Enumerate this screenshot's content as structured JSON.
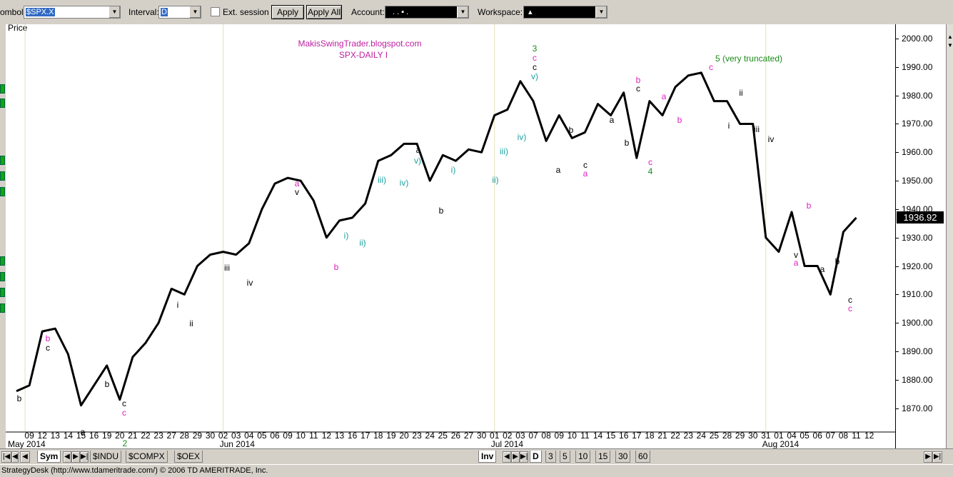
{
  "toolbar": {
    "symbol_label": "ombol:",
    "symbol_value": "$SPX.X",
    "interval_label": "Interval:",
    "interval_value": "D",
    "ext_session_label": "Ext. session",
    "apply_label": "Apply",
    "apply_all_label": "Apply All",
    "account_label": "Account:",
    "account_value": ". . ▪ .",
    "workspace_label": "Workspace:",
    "workspace_value": "▴"
  },
  "chart": {
    "price_label": "Price",
    "title_line1": "MakisSwingTrader.blogspot.com",
    "title_line2": "SPX-DAILY  I",
    "last_price": "1936.92",
    "price_ticks": [
      "2000.00",
      "1990.00",
      "1980.00",
      "1970.00",
      "1960.00",
      "1950.00",
      "1940.00",
      "1930.00",
      "1920.00",
      "1910.00",
      "1900.00",
      "1890.00",
      "1880.00",
      "1870.00"
    ],
    "date_ticks": [
      "09",
      "12",
      "13",
      "14",
      "15",
      "16",
      "19",
      "20",
      "21",
      "22",
      "23",
      "27",
      "28",
      "29",
      "30",
      "02",
      "03",
      "04",
      "05",
      "06",
      "09",
      "10",
      "11",
      "12",
      "13",
      "16",
      "17",
      "18",
      "19",
      "20",
      "23",
      "24",
      "25",
      "26",
      "27",
      "30",
      "01",
      "02",
      "03",
      "07",
      "08",
      "09",
      "10",
      "11",
      "14",
      "15",
      "16",
      "17",
      "18",
      "21",
      "22",
      "23",
      "24",
      "25",
      "28",
      "29",
      "30",
      "31",
      "01",
      "04",
      "05",
      "06",
      "07",
      "08",
      "11",
      "12"
    ],
    "month_labels": [
      "May 2014",
      "Jun 2014",
      "Jul 2014",
      "Aug 2014"
    ]
  },
  "chart_data": {
    "type": "line",
    "title": "SPX-DAILY  I",
    "subtitle": "MakisSwingTrader.blogspot.com",
    "ylabel": "Price",
    "ylim": [
      1864,
      2008
    ],
    "x": [
      "05-08",
      "05-09",
      "05-12",
      "05-13",
      "05-14",
      "05-15",
      "05-16",
      "05-19",
      "05-20",
      "05-21",
      "05-22",
      "05-23",
      "05-27",
      "05-28",
      "05-29",
      "05-30",
      "06-02",
      "06-03",
      "06-04",
      "06-05",
      "06-06",
      "06-09",
      "06-10",
      "06-11",
      "06-12",
      "06-13",
      "06-16",
      "06-17",
      "06-18",
      "06-19",
      "06-20",
      "06-23",
      "06-24",
      "06-25",
      "06-26",
      "06-27",
      "06-30",
      "07-01",
      "07-02",
      "07-03",
      "07-07",
      "07-08",
      "07-09",
      "07-10",
      "07-11",
      "07-14",
      "07-15",
      "07-16",
      "07-17",
      "07-18",
      "07-21",
      "07-22",
      "07-23",
      "07-24",
      "07-25",
      "07-28",
      "07-29",
      "07-30",
      "07-31",
      "08-01",
      "08-04",
      "08-05",
      "08-06",
      "08-07",
      "08-08",
      "08-11"
    ],
    "values": [
      1876,
      1878,
      1897,
      1898,
      1889,
      1871,
      1878,
      1885,
      1873,
      1888,
      1893,
      1900,
      1912,
      1910,
      1920,
      1924,
      1925,
      1924,
      1928,
      1940,
      1949,
      1951,
      1950,
      1943,
      1930,
      1936,
      1937,
      1942,
      1957,
      1959,
      1963,
      1963,
      1950,
      1959,
      1957,
      1961,
      1960,
      1973,
      1975,
      1985,
      1978,
      1964,
      1973,
      1965,
      1967,
      1977,
      1973,
      1981,
      1958,
      1978,
      1973,
      1983,
      1987,
      1988,
      1978,
      1978,
      1970,
      1970,
      1930,
      1925,
      1939,
      1920,
      1920,
      1910,
      1932,
      1937
    ]
  },
  "wave_labels": [
    {
      "t": "b",
      "c": "#000"
    },
    {
      "t": "b",
      "c": "#e020c0"
    },
    {
      "t": "c",
      "c": "#000"
    },
    {
      "t": "a",
      "c": "#000"
    },
    {
      "t": "b",
      "c": "#000"
    },
    {
      "t": "c",
      "c": "#000"
    },
    {
      "t": "c",
      "c": "#e020c0"
    },
    {
      "t": "2",
      "c": "#1a8a1a"
    },
    {
      "t": "i",
      "c": "#000"
    },
    {
      "t": "ii",
      "c": "#000"
    },
    {
      "t": "iii",
      "c": "#000"
    },
    {
      "t": "iv",
      "c": "#000"
    },
    {
      "t": "a",
      "c": "#e020c0"
    },
    {
      "t": "v",
      "c": "#000"
    },
    {
      "t": "b",
      "c": "#e020c0"
    },
    {
      "t": "i)",
      "c": "#1aa0a0"
    },
    {
      "t": "ii)",
      "c": "#1aa0a0"
    },
    {
      "t": "iii)",
      "c": "#1aa0a0"
    },
    {
      "t": "iv)",
      "c": "#1aa0a0"
    },
    {
      "t": "a",
      "c": "#000"
    },
    {
      "t": "v)",
      "c": "#1aa0a0"
    },
    {
      "t": "b",
      "c": "#000"
    },
    {
      "t": "i)",
      "c": "#1aa0a0"
    },
    {
      "t": "ii)",
      "c": "#1aa0a0"
    },
    {
      "t": "iii)",
      "c": "#1aa0a0"
    },
    {
      "t": "iv)",
      "c": "#1aa0a0"
    },
    {
      "t": "3",
      "c": "#1a8a1a"
    },
    {
      "t": "c",
      "c": "#e020c0"
    },
    {
      "t": "c",
      "c": "#000"
    },
    {
      "t": "v)",
      "c": "#1aa0a0"
    },
    {
      "t": "a",
      "c": "#000"
    },
    {
      "t": "b",
      "c": "#000"
    },
    {
      "t": "c",
      "c": "#000"
    },
    {
      "t": "a",
      "c": "#e020c0"
    },
    {
      "t": "a",
      "c": "#000"
    },
    {
      "t": "b",
      "c": "#000"
    },
    {
      "t": "b",
      "c": "#e020c0"
    },
    {
      "t": "c",
      "c": "#000"
    },
    {
      "t": "c",
      "c": "#e020c0"
    },
    {
      "t": "4",
      "c": "#1a8a1a"
    },
    {
      "t": "a",
      "c": "#e020c0"
    },
    {
      "t": "b",
      "c": "#e020c0"
    },
    {
      "t": "5 (very truncated)",
      "c": "#1a8a1a"
    },
    {
      "t": "c",
      "c": "#e020c0"
    },
    {
      "t": "i",
      "c": "#000"
    },
    {
      "t": "ii",
      "c": "#000"
    },
    {
      "t": "iii",
      "c": "#000"
    },
    {
      "t": "iv",
      "c": "#000"
    },
    {
      "t": "v",
      "c": "#000"
    },
    {
      "t": "a",
      "c": "#e020c0"
    },
    {
      "t": "b",
      "c": "#e020c0"
    },
    {
      "t": "a",
      "c": "#000"
    },
    {
      "t": "b",
      "c": "#000"
    },
    {
      "t": "c",
      "c": "#000"
    },
    {
      "t": "c",
      "c": "#e020c0"
    }
  ],
  "bottom": {
    "sym_tab": "Sym",
    "tabs": [
      "$INDU",
      "$COMPX",
      "$OEX"
    ],
    "inv_tab": "Inv",
    "interval_tabs": [
      "D",
      "3",
      "5",
      "10",
      "15",
      "30",
      "60"
    ]
  },
  "status": {
    "text": "StrategyDesk (http://www.tdameritrade.com/) © 2006 TD AMERITRADE, Inc."
  }
}
